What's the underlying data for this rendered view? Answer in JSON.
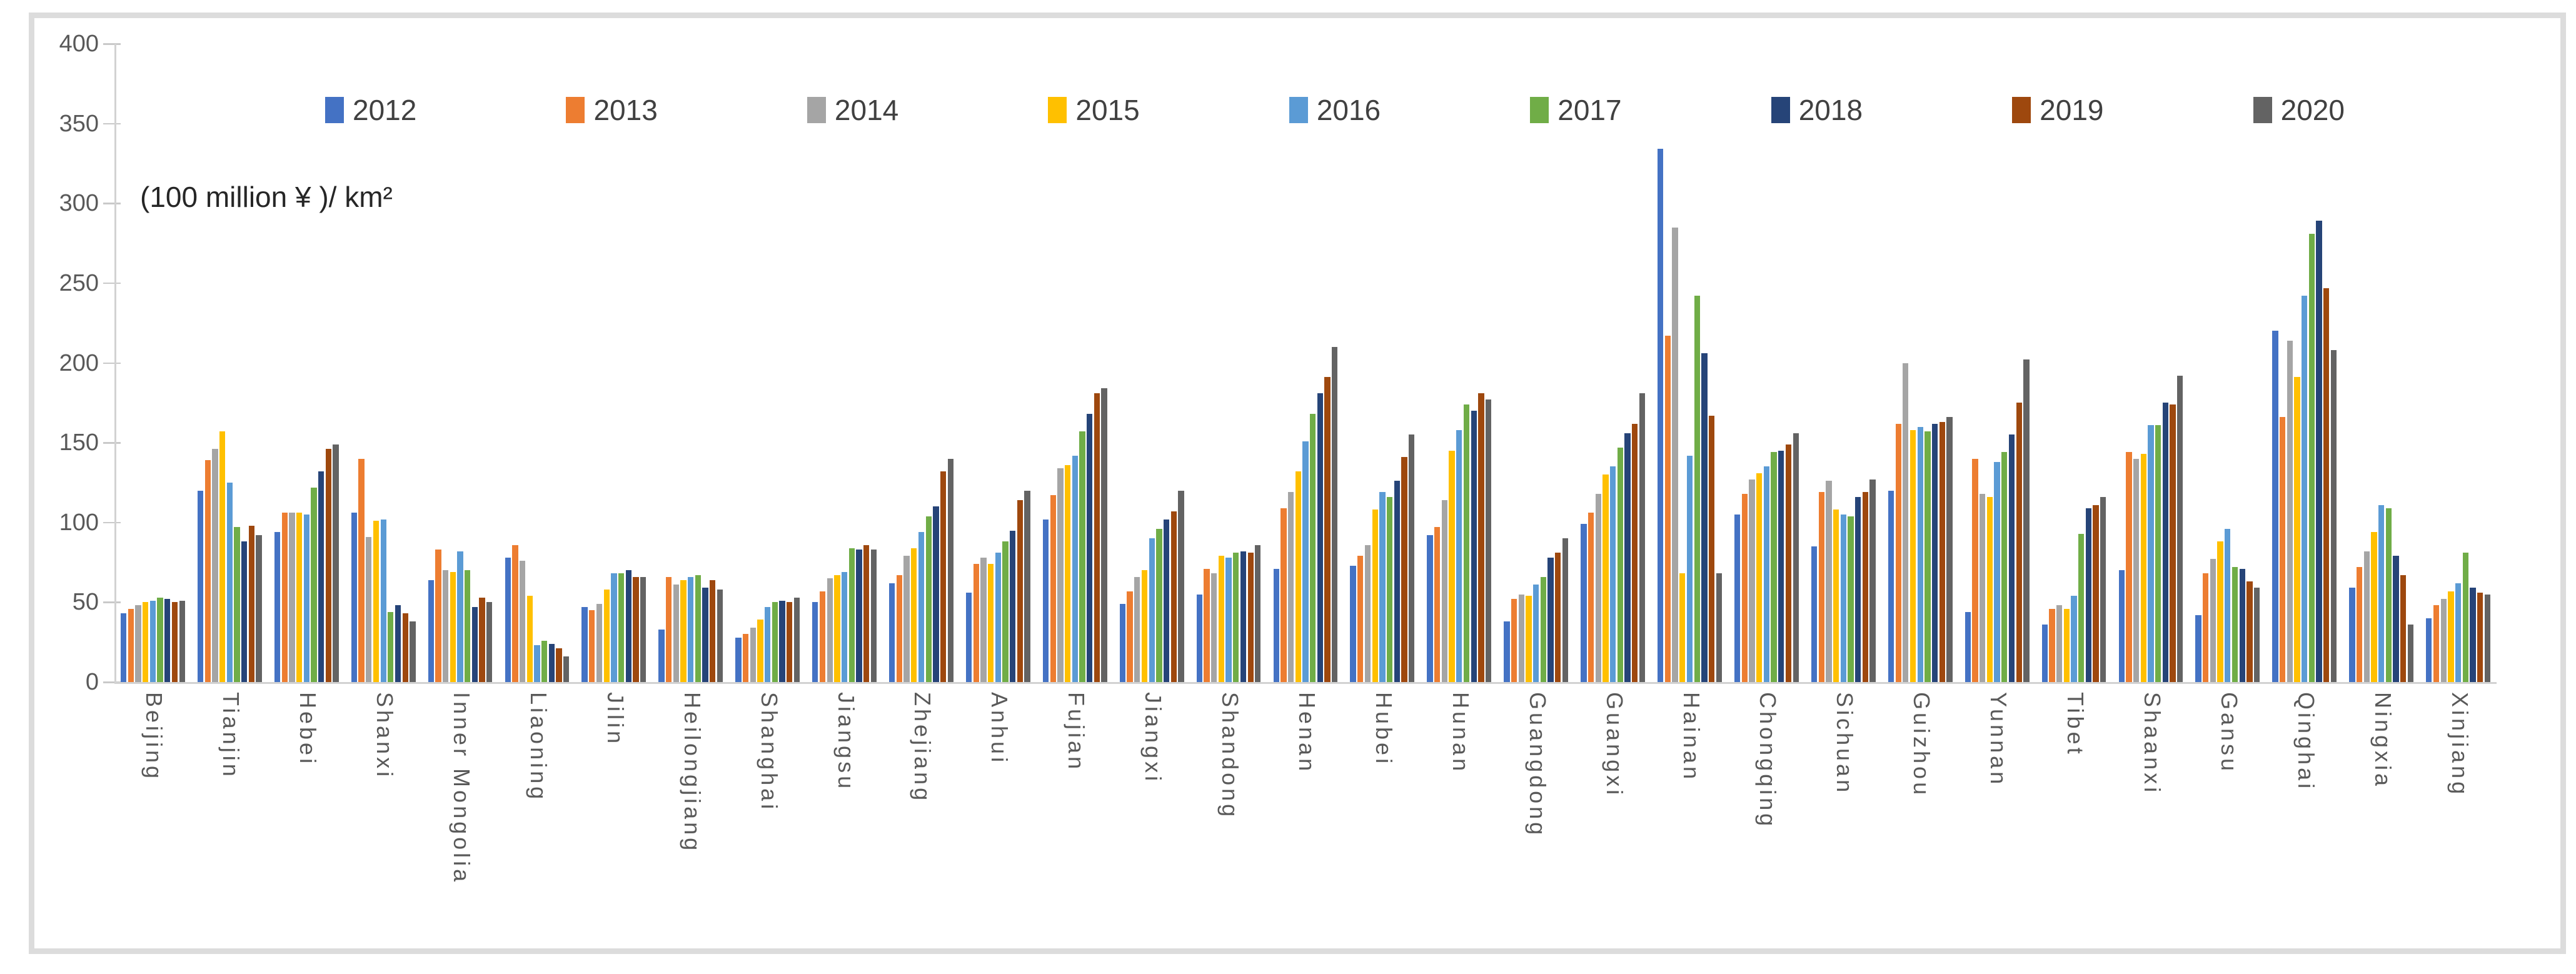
{
  "chart_data": {
    "type": "bar",
    "title": "",
    "unit_label": "(100 million ¥ )/ km²",
    "xlabel": "",
    "ylabel": "",
    "ylim": [
      0,
      400
    ],
    "yticks": [
      0,
      50,
      100,
      150,
      200,
      250,
      300,
      350,
      400
    ],
    "grid": false,
    "legend_position": "top",
    "axis_color": "#d2d2d2",
    "tick_color": "#c9c9c9",
    "text_color": "#595959",
    "legend_text_color": "#404040",
    "categories": [
      "Beijing",
      "Tianjin",
      "Hebei",
      "Shanxi",
      "Inner Mongolia",
      "Liaoning",
      "Jilin",
      "Heilongjiang",
      "Shanghai",
      "Jiangsu",
      "Zhejiang",
      "Anhui",
      "Fujian",
      "Jiangxi",
      "Shandong",
      "Henan",
      "Hubei",
      "Hunan",
      "Guangdong",
      "Guangxi",
      "Hainan",
      "Chongqing",
      "Sichuan",
      "Guizhou",
      "Yunnan",
      "Tibet",
      "Shaanxi",
      "Gansu",
      "Qinghai",
      "Ningxia",
      "Xinjiang"
    ],
    "series": [
      {
        "name": "2012",
        "color": "#4472C4",
        "values": [
          43,
          120,
          94,
          106,
          64,
          78,
          47,
          33,
          28,
          50,
          62,
          56,
          102,
          49,
          55,
          71,
          73,
          92,
          38,
          99,
          334,
          105,
          85,
          120,
          44,
          36,
          70,
          42,
          220,
          59,
          40
        ]
      },
      {
        "name": "2013",
        "color": "#ED7D31",
        "values": [
          46,
          139,
          106,
          140,
          83,
          86,
          45,
          66,
          30,
          57,
          67,
          74,
          117,
          57,
          71,
          109,
          79,
          97,
          52,
          106,
          217,
          118,
          119,
          162,
          140,
          46,
          144,
          68,
          166,
          72,
          48
        ]
      },
      {
        "name": "2014",
        "color": "#A5A5A5",
        "values": [
          48,
          146,
          106,
          91,
          70,
          76,
          49,
          61,
          34,
          65,
          79,
          78,
          134,
          66,
          68,
          119,
          86,
          114,
          55,
          118,
          285,
          127,
          126,
          200,
          118,
          48,
          140,
          77,
          214,
          82,
          52
        ]
      },
      {
        "name": "2015",
        "color": "#FFC000",
        "values": [
          50,
          157,
          106,
          101,
          69,
          54,
          58,
          64,
          39,
          67,
          84,
          74,
          136,
          70,
          79,
          132,
          108,
          145,
          54,
          130,
          68,
          131,
          108,
          158,
          116,
          46,
          143,
          88,
          191,
          94,
          57
        ]
      },
      {
        "name": "2016",
        "color": "#5B9BD5",
        "values": [
          51,
          125,
          105,
          102,
          82,
          23,
          68,
          66,
          47,
          69,
          94,
          81,
          142,
          90,
          78,
          151,
          119,
          158,
          61,
          135,
          142,
          135,
          105,
          160,
          138,
          54,
          161,
          96,
          242,
          111,
          62
        ]
      },
      {
        "name": "2017",
        "color": "#70AD47",
        "values": [
          53,
          97,
          122,
          44,
          70,
          26,
          68,
          67,
          50,
          84,
          104,
          88,
          157,
          96,
          81,
          168,
          116,
          174,
          66,
          147,
          242,
          144,
          104,
          157,
          144,
          93,
          161,
          72,
          281,
          109,
          81
        ]
      },
      {
        "name": "2018",
        "color": "#264478",
        "values": [
          52,
          88,
          132,
          48,
          47,
          24,
          70,
          59,
          51,
          83,
          110,
          95,
          168,
          102,
          82,
          181,
          126,
          170,
          78,
          156,
          206,
          145,
          116,
          162,
          155,
          109,
          175,
          71,
          289,
          79,
          59
        ]
      },
      {
        "name": "2019",
        "color": "#9E480E",
        "values": [
          50,
          98,
          146,
          43,
          53,
          21,
          66,
          64,
          50,
          86,
          132,
          114,
          181,
          107,
          81,
          191,
          141,
          181,
          81,
          162,
          167,
          149,
          119,
          163,
          175,
          111,
          174,
          63,
          247,
          67,
          56
        ]
      },
      {
        "name": "2020",
        "color": "#636363",
        "values": [
          51,
          92,
          149,
          38,
          50,
          16,
          66,
          58,
          53,
          83,
          140,
          120,
          184,
          120,
          86,
          210,
          155,
          177,
          90,
          181,
          68,
          156,
          127,
          166,
          202,
          116,
          192,
          59,
          208,
          36,
          55
        ]
      }
    ]
  }
}
